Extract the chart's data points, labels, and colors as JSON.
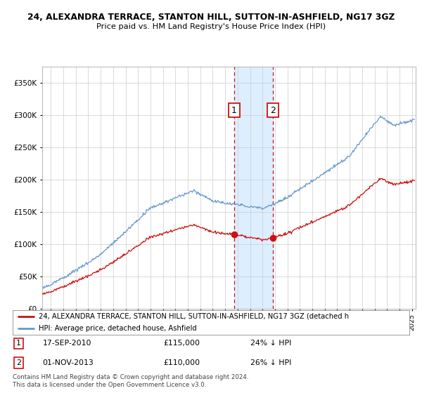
{
  "title1": "24, ALEXANDRA TERRACE, STANTON HILL, SUTTON-IN-ASHFIELD, NG17 3GZ",
  "title2": "Price paid vs. HM Land Registry's House Price Index (HPI)",
  "legend_red": "24, ALEXANDRA TERRACE, STANTON HILL, SUTTON-IN-ASHFIELD, NG17 3GZ (detached h",
  "legend_blue": "HPI: Average price, detached house, Ashfield",
  "sale1_date": "17-SEP-2010",
  "sale1_price": "£115,000",
  "sale1_hpi": "24% ↓ HPI",
  "sale2_date": "01-NOV-2013",
  "sale2_price": "£110,000",
  "sale2_hpi": "26% ↓ HPI",
  "footer": "Contains HM Land Registry data © Crown copyright and database right 2024.\nThis data is licensed under the Open Government Licence v3.0.",
  "ylim": [
    0,
    375000
  ],
  "yticks": [
    0,
    50000,
    100000,
    150000,
    200000,
    250000,
    300000,
    350000
  ],
  "sale1_x": 2010.72,
  "sale1_y": 115000,
  "sale2_x": 2013.83,
  "sale2_y": 110000,
  "hpi_color": "#6699cc",
  "price_color": "#cc1111",
  "highlight_color": "#ddeeff",
  "background_color": "#ffffff",
  "grid_color": "#cccccc",
  "xlim_start": 1995.3,
  "xlim_end": 2025.3
}
